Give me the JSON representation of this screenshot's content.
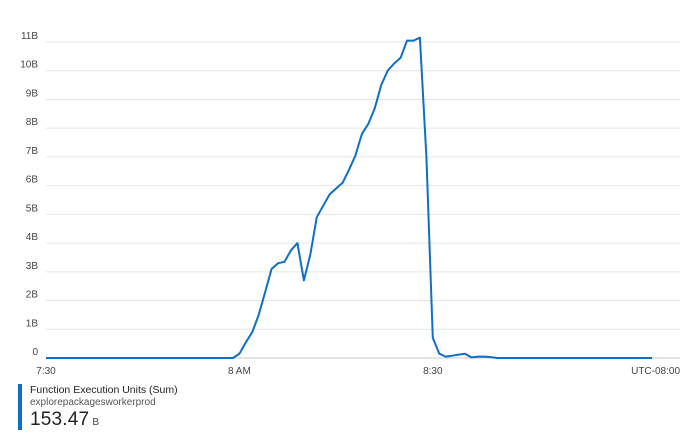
{
  "chart_data": {
    "type": "line",
    "title": "",
    "xlabel": "",
    "ylabel": "",
    "ylim": [
      0,
      11
    ],
    "y_unit": "B",
    "y_ticks": [
      "0",
      "1B",
      "2B",
      "3B",
      "4B",
      "5B",
      "6B",
      "7B",
      "8B",
      "9B",
      "10B",
      "11B"
    ],
    "x_tick_labels": [
      "7:30",
      "8 AM",
      "8:30"
    ],
    "x_ticks_minutes": [
      0,
      30,
      60
    ],
    "xlim_minutes": [
      0,
      94
    ],
    "timezone_label": "UTC-08:00",
    "grid": true,
    "legend_position": "bottom-left",
    "series": [
      {
        "name": "Function Execution Units (Sum)",
        "color": "#0f6fc6",
        "x_minutes": [
          0,
          29,
          30,
          31,
          32,
          33,
          34,
          35,
          36,
          37,
          38,
          39,
          40,
          41,
          42,
          43,
          44,
          45,
          46,
          47,
          48,
          49,
          50,
          51,
          52,
          53,
          54,
          55,
          56,
          57,
          58,
          59,
          60,
          61,
          62,
          63,
          64,
          65,
          66,
          67,
          68,
          69,
          70,
          94
        ],
        "values": [
          0,
          0,
          0.15,
          0.55,
          0.9,
          1.5,
          2.3,
          3.1,
          3.3,
          3.35,
          3.75,
          4.0,
          2.7,
          3.6,
          4.9,
          5.3,
          5.7,
          5.9,
          6.1,
          6.55,
          7.05,
          7.8,
          8.15,
          8.7,
          9.5,
          10.0,
          10.25,
          10.45,
          11.05,
          11.05,
          11.15,
          7.0,
          0.7,
          0.15,
          0.05,
          0.08,
          0.12,
          0.15,
          0.02,
          0.05,
          0.05,
          0.03,
          0.0,
          0.0
        ]
      }
    ]
  },
  "legend": {
    "metric_name": "Function Execution Units (Sum)",
    "resource_name": "explorepackagesworkerprod",
    "total_value": "153.47",
    "total_unit": "B",
    "color": "#0f6fc6"
  }
}
